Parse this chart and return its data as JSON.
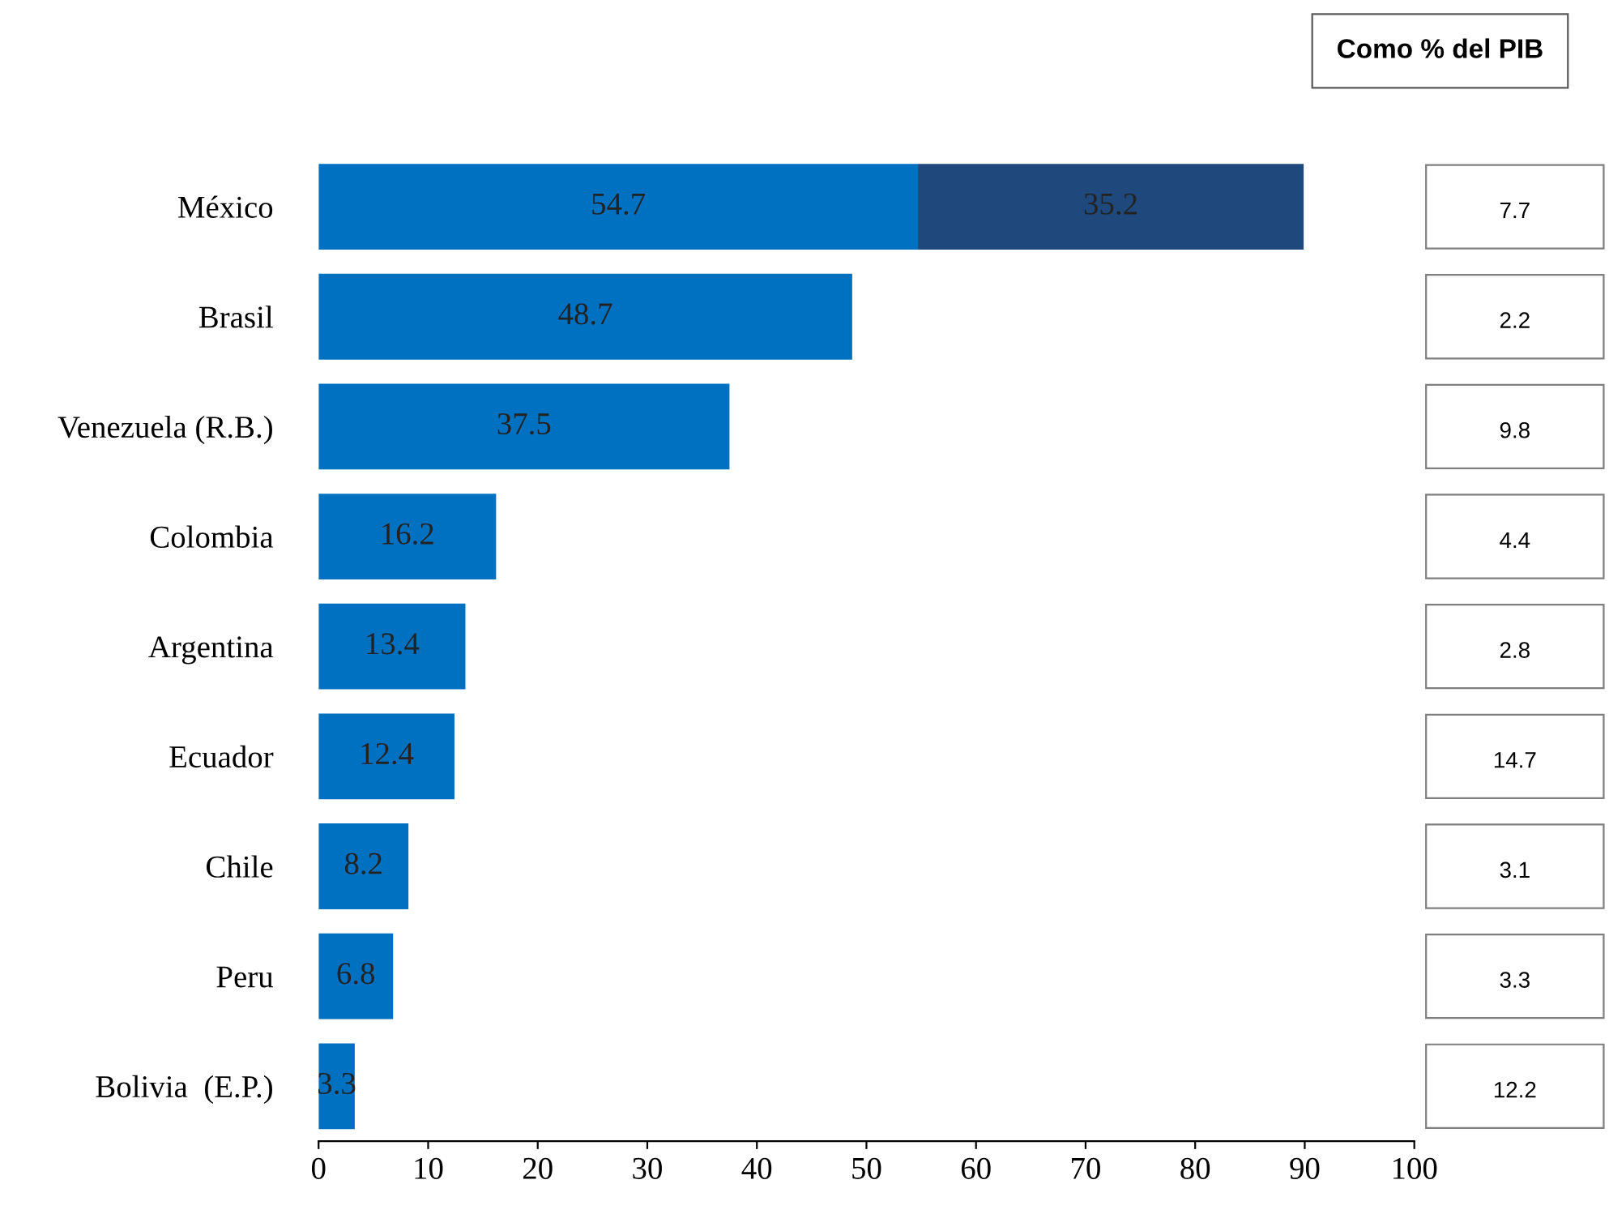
{
  "chart_data": [
    {
      "type": "bar",
      "orientation": "horizontal",
      "stacked": true,
      "categories": [
        "México",
        "Brasil",
        "Venezuela (R.B.)",
        "Colombia",
        "Argentina",
        "Ecuador",
        "Chile",
        "Peru",
        "Bolivia  (E.P.)"
      ],
      "series": [
        {
          "color": "#0070c0",
          "values": [
            54.7,
            48.7,
            37.5,
            16.2,
            13.4,
            12.4,
            8.2,
            6.8,
            3.3
          ]
        },
        {
          "color": "#1f497d",
          "values": [
            35.2,
            null,
            null,
            null,
            null,
            null,
            null,
            null,
            null
          ]
        }
      ],
      "xlim": [
        0,
        100
      ],
      "xticks": [
        0,
        10,
        20,
        30,
        40,
        50,
        60,
        70,
        80,
        90,
        100
      ],
      "data_labels": true,
      "grid": false,
      "legend": false
    },
    {
      "type": "other",
      "title": "Como % del PIB",
      "categories": [
        null,
        null,
        null,
        null,
        null,
        null,
        null,
        null,
        null
      ],
      "values": [
        7.7,
        2.2,
        9.8,
        4.4,
        2.8,
        14.7,
        3.1,
        3.3,
        12.2
      ],
      "data_labels": true
    }
  ]
}
